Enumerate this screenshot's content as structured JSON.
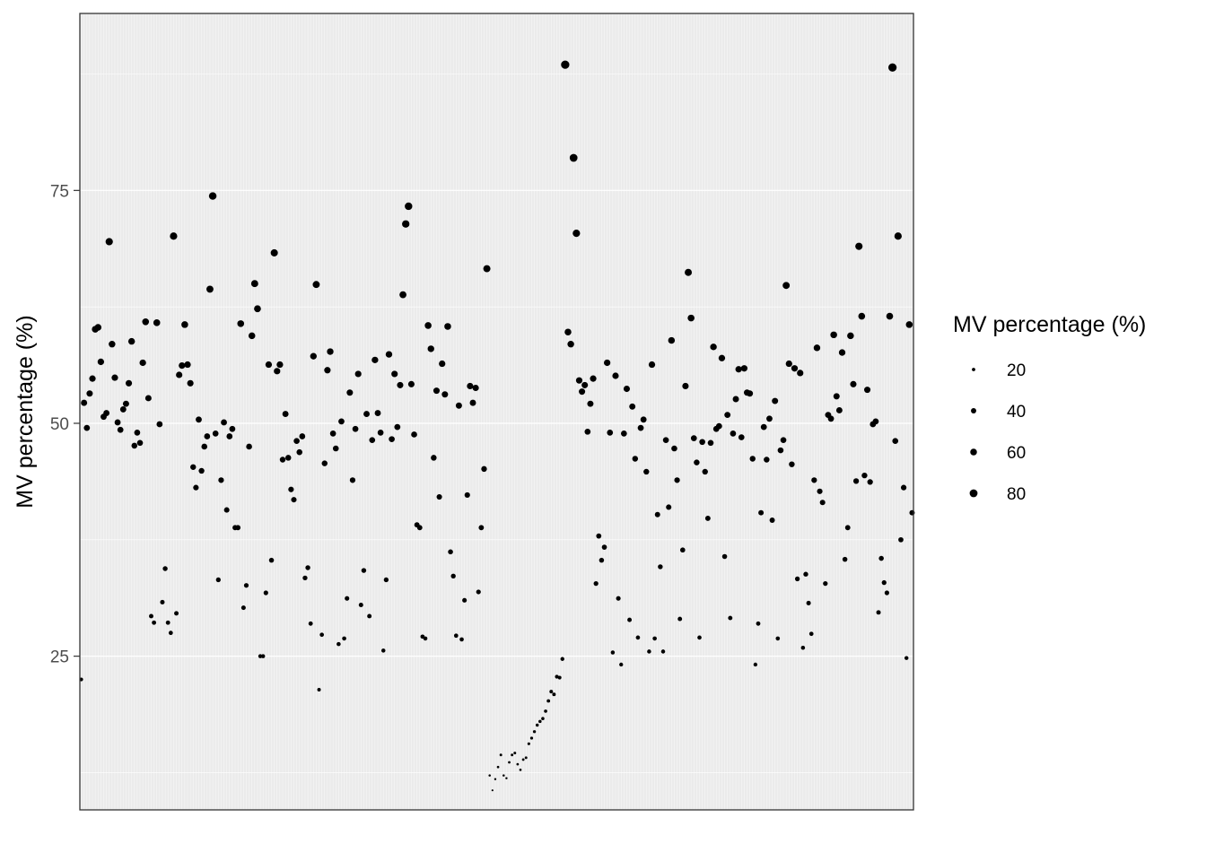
{
  "chart_data": {
    "type": "scatter",
    "ylabel": "MV percentage (%)",
    "xlabel": "",
    "ylim": [
      8.5,
      94
    ],
    "y_ticks": [
      25,
      50,
      75
    ],
    "grid": true,
    "legend": {
      "title": "MV percentage (%)",
      "position": "right",
      "values": [
        20,
        40,
        60,
        80
      ]
    },
    "colors": {
      "point": "#000000",
      "panel_bg": "#ebebeb",
      "grid": "#ffffff",
      "frame": "#333333"
    },
    "series": [
      {
        "values": [
          22.5,
          52.2,
          49.5,
          53.2,
          54.8,
          60.1,
          60.3,
          56.6,
          50.7,
          51.1,
          69.5,
          58.5,
          54.9,
          50.1,
          49.3,
          51.5,
          52.1,
          54.3,
          58.8,
          47.6,
          49.0,
          47.9,
          56.5,
          60.9,
          52.7,
          29.3,
          28.6,
          60.8,
          49.9,
          30.8,
          34.4,
          28.6,
          27.5,
          70.1,
          29.6,
          55.2,
          56.2,
          60.6,
          56.3,
          54.3,
          45.3,
          43.1,
          50.4,
          44.9,
          47.5,
          48.6,
          64.4,
          74.4,
          48.9,
          33.2,
          43.9,
          50.1,
          40.7,
          48.6,
          49.4,
          38.8,
          38.8,
          60.7,
          30.2,
          32.6,
          47.5,
          59.4,
          65.0,
          62.3,
          25.0,
          25.0,
          31.8,
          56.3,
          35.3,
          68.3,
          55.6,
          56.3,
          46.1,
          51.0,
          46.3,
          42.9,
          41.8,
          48.1,
          46.9,
          48.6,
          33.4,
          34.5,
          28.5,
          57.2,
          64.9,
          21.4,
          27.3,
          45.7,
          55.7,
          57.7,
          48.9,
          47.3,
          26.3,
          50.2,
          26.9,
          31.2,
          53.3,
          43.9,
          49.4,
          55.3,
          30.5,
          34.2,
          51.0,
          29.3,
          48.2,
          56.8,
          51.1,
          49.0,
          25.6,
          33.2,
          57.4,
          48.3,
          55.3,
          49.6,
          54.1,
          63.8,
          71.4,
          73.3,
          54.2,
          48.8,
          39.1,
          38.8,
          27.1,
          26.9,
          60.5,
          58.0,
          46.3,
          53.5,
          42.1,
          56.4,
          53.1,
          60.4,
          36.2,
          33.6,
          27.2,
          51.9,
          26.8,
          31.0,
          42.3,
          54.0,
          52.2,
          53.8,
          31.9,
          38.8,
          45.1,
          66.6,
          12.2,
          10.6,
          11.8,
          13.1,
          14.4,
          12.2,
          11.9,
          13.6,
          14.4,
          14.6,
          13.4,
          12.8,
          13.9,
          14.1,
          15.6,
          16.2,
          16.9,
          17.6,
          18.0,
          18.3,
          19.1,
          20.2,
          21.2,
          20.9,
          22.8,
          22.7,
          24.7,
          88.5,
          59.8,
          58.5,
          78.5,
          70.4,
          54.6,
          53.4,
          54.1,
          49.1,
          52.1,
          54.8,
          32.8,
          37.9,
          35.3,
          36.7,
          56.5,
          49.0,
          25.4,
          55.1,
          31.2,
          24.1,
          48.9,
          53.7,
          28.9,
          51.8,
          46.2,
          27.0,
          49.5,
          50.4,
          44.8,
          25.5,
          56.3,
          26.9,
          40.2,
          34.6,
          25.5,
          48.2,
          41.0,
          58.9,
          47.3,
          43.9,
          29.0,
          36.4,
          54.0,
          66.2,
          61.3,
          48.4,
          45.8,
          27.0,
          48.0,
          44.8,
          39.8,
          47.9,
          58.2,
          49.4,
          49.7,
          57.0,
          35.7,
          50.9,
          29.1,
          48.9,
          52.6,
          55.8,
          48.5,
          55.9,
          53.3,
          53.2,
          46.2,
          24.1,
          28.5,
          40.4,
          49.6,
          46.1,
          50.5,
          39.6,
          52.4,
          26.9,
          47.1,
          48.2,
          64.8,
          56.4,
          45.6,
          55.9,
          33.3,
          55.4,
          25.9,
          33.8,
          30.7,
          27.4,
          43.9,
          58.1,
          42.7,
          41.5,
          32.8,
          50.9,
          50.5,
          59.5,
          52.9,
          51.4,
          57.6,
          35.4,
          38.8,
          59.4,
          54.2,
          43.8,
          69.0,
          61.5,
          44.4,
          53.6,
          43.7,
          49.9,
          50.2,
          29.7,
          35.5,
          32.9,
          31.8,
          61.5,
          88.2,
          48.1,
          70.1,
          37.5,
          43.1,
          24.8,
          60.6,
          40.4
        ]
      }
    ]
  }
}
